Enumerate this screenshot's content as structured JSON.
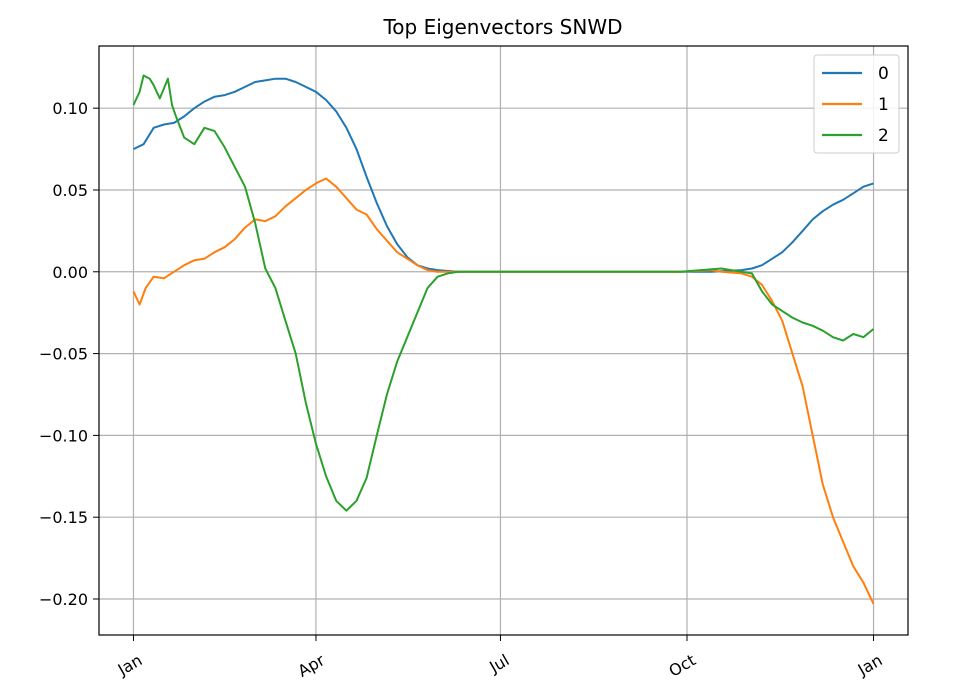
{
  "chart_data": {
    "type": "line",
    "title": "Top Eigenvectors SNWD",
    "xlabel": "",
    "ylabel": "",
    "x_ticks": [
      "Jan",
      "Apr",
      "Jul",
      "Oct",
      "Jan"
    ],
    "x_tick_days": [
      0,
      90,
      181,
      273,
      365
    ],
    "xlim": [
      -17,
      382
    ],
    "y_ticks": [
      "0.10",
      "0.05",
      "0.00",
      "−0.05",
      "−0.10",
      "−0.15",
      "−0.20"
    ],
    "y_tick_values": [
      0.1,
      0.05,
      0.0,
      -0.05,
      -0.1,
      -0.15,
      -0.2
    ],
    "ylim": [
      -0.222,
      0.138
    ],
    "grid": true,
    "legend_position": "top-right",
    "series": [
      {
        "name": "0",
        "color": "#1f77b4",
        "points": [
          [
            0,
            0.075
          ],
          [
            5,
            0.078
          ],
          [
            10,
            0.088
          ],
          [
            15,
            0.09
          ],
          [
            20,
            0.091
          ],
          [
            25,
            0.095
          ],
          [
            30,
            0.1
          ],
          [
            35,
            0.104
          ],
          [
            40,
            0.107
          ],
          [
            45,
            0.108
          ],
          [
            50,
            0.11
          ],
          [
            55,
            0.113
          ],
          [
            60,
            0.116
          ],
          [
            65,
            0.117
          ],
          [
            70,
            0.118
          ],
          [
            75,
            0.118
          ],
          [
            80,
            0.116
          ],
          [
            85,
            0.113
          ],
          [
            90,
            0.11
          ],
          [
            95,
            0.105
          ],
          [
            100,
            0.098
          ],
          [
            105,
            0.088
          ],
          [
            110,
            0.075
          ],
          [
            115,
            0.058
          ],
          [
            120,
            0.042
          ],
          [
            125,
            0.028
          ],
          [
            130,
            0.017
          ],
          [
            135,
            0.009
          ],
          [
            140,
            0.004
          ],
          [
            145,
            0.002
          ],
          [
            150,
            0.001
          ],
          [
            160,
            0.0
          ],
          [
            200,
            0.0
          ],
          [
            240,
            0.0
          ],
          [
            270,
            0.0
          ],
          [
            285,
            0.0
          ],
          [
            300,
            0.001
          ],
          [
            305,
            0.002
          ],
          [
            310,
            0.004
          ],
          [
            315,
            0.008
          ],
          [
            320,
            0.012
          ],
          [
            325,
            0.018
          ],
          [
            330,
            0.025
          ],
          [
            335,
            0.032
          ],
          [
            340,
            0.037
          ],
          [
            345,
            0.041
          ],
          [
            350,
            0.044
          ],
          [
            355,
            0.048
          ],
          [
            360,
            0.052
          ],
          [
            365,
            0.054
          ]
        ]
      },
      {
        "name": "1",
        "color": "#ff7f0e",
        "points": [
          [
            0,
            -0.012
          ],
          [
            3,
            -0.02
          ],
          [
            6,
            -0.01
          ],
          [
            10,
            -0.003
          ],
          [
            15,
            -0.004
          ],
          [
            20,
            0.0
          ],
          [
            25,
            0.004
          ],
          [
            30,
            0.007
          ],
          [
            35,
            0.008
          ],
          [
            40,
            0.012
          ],
          [
            45,
            0.015
          ],
          [
            50,
            0.02
          ],
          [
            55,
            0.027
          ],
          [
            60,
            0.032
          ],
          [
            65,
            0.031
          ],
          [
            70,
            0.034
          ],
          [
            75,
            0.04
          ],
          [
            80,
            0.045
          ],
          [
            85,
            0.05
          ],
          [
            90,
            0.054
          ],
          [
            95,
            0.057
          ],
          [
            100,
            0.052
          ],
          [
            105,
            0.045
          ],
          [
            110,
            0.038
          ],
          [
            115,
            0.035
          ],
          [
            120,
            0.026
          ],
          [
            125,
            0.019
          ],
          [
            130,
            0.012
          ],
          [
            135,
            0.008
          ],
          [
            140,
            0.004
          ],
          [
            145,
            0.001
          ],
          [
            150,
            0.0
          ],
          [
            160,
            0.0
          ],
          [
            200,
            0.0
          ],
          [
            240,
            0.0
          ],
          [
            270,
            0.0
          ],
          [
            285,
            0.001
          ],
          [
            290,
            0.0
          ],
          [
            300,
            -0.001
          ],
          [
            305,
            -0.003
          ],
          [
            310,
            -0.008
          ],
          [
            315,
            -0.018
          ],
          [
            320,
            -0.03
          ],
          [
            325,
            -0.05
          ],
          [
            330,
            -0.07
          ],
          [
            335,
            -0.1
          ],
          [
            340,
            -0.13
          ],
          [
            345,
            -0.15
          ],
          [
            350,
            -0.165
          ],
          [
            355,
            -0.18
          ],
          [
            360,
            -0.19
          ],
          [
            365,
            -0.203
          ]
        ]
      },
      {
        "name": "2",
        "color": "#2ca02c",
        "points": [
          [
            0,
            0.102
          ],
          [
            3,
            0.11
          ],
          [
            5,
            0.12
          ],
          [
            8,
            0.118
          ],
          [
            10,
            0.114
          ],
          [
            13,
            0.106
          ],
          [
            15,
            0.112
          ],
          [
            17,
            0.118
          ],
          [
            19,
            0.102
          ],
          [
            21,
            0.095
          ],
          [
            25,
            0.082
          ],
          [
            30,
            0.078
          ],
          [
            35,
            0.088
          ],
          [
            40,
            0.086
          ],
          [
            45,
            0.076
          ],
          [
            50,
            0.064
          ],
          [
            55,
            0.052
          ],
          [
            60,
            0.03
          ],
          [
            65,
            0.002
          ],
          [
            70,
            -0.01
          ],
          [
            75,
            -0.03
          ],
          [
            80,
            -0.05
          ],
          [
            85,
            -0.08
          ],
          [
            90,
            -0.105
          ],
          [
            95,
            -0.125
          ],
          [
            100,
            -0.14
          ],
          [
            105,
            -0.146
          ],
          [
            110,
            -0.14
          ],
          [
            115,
            -0.126
          ],
          [
            120,
            -0.1
          ],
          [
            125,
            -0.075
          ],
          [
            130,
            -0.055
          ],
          [
            135,
            -0.04
          ],
          [
            140,
            -0.025
          ],
          [
            145,
            -0.01
          ],
          [
            150,
            -0.003
          ],
          [
            155,
            -0.001
          ],
          [
            160,
            0.0
          ],
          [
            200,
            0.0
          ],
          [
            240,
            0.0
          ],
          [
            270,
            0.0
          ],
          [
            290,
            0.002
          ],
          [
            300,
            0.0
          ],
          [
            305,
            -0.001
          ],
          [
            310,
            -0.012
          ],
          [
            315,
            -0.02
          ],
          [
            320,
            -0.024
          ],
          [
            325,
            -0.028
          ],
          [
            330,
            -0.031
          ],
          [
            335,
            -0.033
          ],
          [
            340,
            -0.036
          ],
          [
            345,
            -0.04
          ],
          [
            350,
            -0.042
          ],
          [
            355,
            -0.038
          ],
          [
            360,
            -0.04
          ],
          [
            365,
            -0.035
          ]
        ]
      }
    ]
  }
}
